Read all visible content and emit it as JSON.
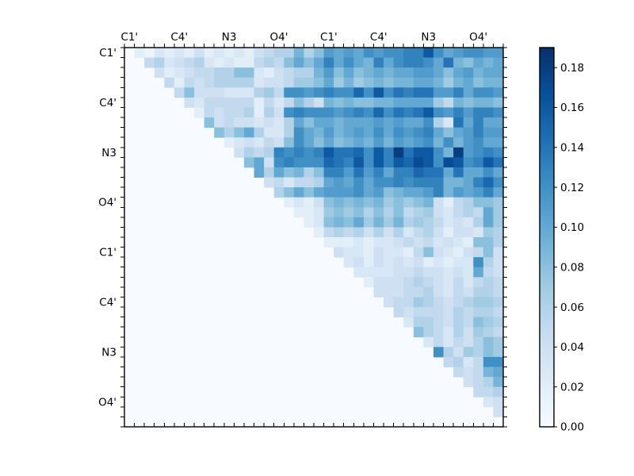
{
  "figure": {
    "background": "#ffffff"
  },
  "chart_data": {
    "type": "heatmap",
    "title": "",
    "xlabel": "",
    "ylabel": "",
    "n": 38,
    "triangle": "upper",
    "grid": false,
    "colormap": "Blues",
    "colormap_stops": [
      "#f7fbff",
      "#deebf7",
      "#c6dbef",
      "#9ecae1",
      "#6baed6",
      "#4292c6",
      "#2171b5",
      "#08519c",
      "#08306b"
    ],
    "vmin": 0.0,
    "vmax": 0.19,
    "x_tick_labels": [
      "C1'",
      "C4'",
      "N3",
      "O4'",
      "C1'",
      "C4'",
      "N3",
      "O4'"
    ],
    "y_tick_labels": [
      "C1'",
      "C4'",
      "N3",
      "O4'",
      "C1'",
      "C4'",
      "N3",
      "O4'"
    ],
    "label_positions": [
      0,
      5,
      10,
      15,
      20,
      25,
      30,
      35
    ],
    "colorbar": {
      "position": "right",
      "tick_labels": [
        "0.00",
        "0.02",
        "0.04",
        "0.06",
        "0.08",
        "0.10",
        "0.12",
        "0.14",
        "0.16",
        "0.18"
      ],
      "tick_values": [
        0.0,
        0.02,
        0.04,
        0.06,
        0.08,
        0.1,
        0.12,
        0.14,
        0.16,
        0.18
      ]
    },
    "matrix_format": "row r holds values for columns r+1..n-1; diagonal and lower triangle are 0",
    "matrix_upper": [
      [
        0.02,
        0.01,
        0.03,
        0.02,
        0.03,
        0.02,
        0.04,
        0.02,
        0.03,
        0.02,
        0.03,
        0.02,
        0.04,
        0.05,
        0.06,
        0.06,
        0.09,
        0.06,
        0.08,
        0.11,
        0.1,
        0.11,
        0.1,
        0.12,
        0.11,
        0.12,
        0.12,
        0.13,
        0.13,
        0.16,
        0.12,
        0.1,
        0.11,
        0.12,
        0.12,
        0.11,
        0.11
      ],
      [
        0.05,
        0.06,
        0.03,
        0.04,
        0.05,
        0.06,
        0.03,
        0.02,
        0.03,
        0.02,
        0.02,
        0.05,
        0.06,
        0.05,
        0.08,
        0.1,
        0.08,
        0.1,
        0.13,
        0.1,
        0.12,
        0.1,
        0.09,
        0.13,
        0.1,
        0.12,
        0.13,
        0.13,
        0.12,
        0.1,
        0.14,
        0.09,
        0.08,
        0.1,
        0.09,
        0.1
      ],
      [
        0.04,
        0.02,
        0.03,
        0.04,
        0.05,
        0.05,
        0.06,
        0.06,
        0.08,
        0.08,
        0.03,
        0.02,
        0.04,
        0.05,
        0.06,
        0.06,
        0.09,
        0.11,
        0.08,
        0.1,
        0.08,
        0.09,
        0.1,
        0.09,
        0.1,
        0.1,
        0.11,
        0.11,
        0.1,
        0.08,
        0.1,
        0.11,
        0.09,
        0.1,
        0.1
      ],
      [
        0.05,
        0.02,
        0.05,
        0.04,
        0.05,
        0.06,
        0.06,
        0.06,
        0.06,
        0.03,
        0.04,
        0.04,
        0.05,
        0.07,
        0.07,
        0.08,
        0.1,
        0.07,
        0.09,
        0.07,
        0.08,
        0.09,
        0.08,
        0.09,
        0.09,
        0.1,
        0.1,
        0.09,
        0.07,
        0.09,
        0.1,
        0.08,
        0.09,
        0.09
      ],
      [
        0.05,
        0.08,
        0.04,
        0.04,
        0.04,
        0.03,
        0.03,
        0.03,
        0.06,
        0.07,
        0.05,
        0.12,
        0.12,
        0.11,
        0.12,
        0.13,
        0.12,
        0.12,
        0.15,
        0.12,
        0.16,
        0.12,
        0.14,
        0.13,
        0.14,
        0.14,
        0.11,
        0.11,
        0.13,
        0.1,
        0.12,
        0.12,
        0.11
      ],
      [
        0.04,
        0.03,
        0.05,
        0.05,
        0.05,
        0.05,
        0.05,
        0.02,
        0.05,
        0.03,
        0.05,
        0.08,
        0.06,
        0.04,
        0.09,
        0.08,
        0.09,
        0.08,
        0.08,
        0.09,
        0.09,
        0.1,
        0.1,
        0.1,
        0.1,
        0.07,
        0.05,
        0.09,
        0.08,
        0.09,
        0.09,
        0.08
      ],
      [
        0.02,
        0.05,
        0.04,
        0.05,
        0.05,
        0.06,
        0.02,
        0.06,
        0.04,
        0.12,
        0.13,
        0.12,
        0.12,
        0.12,
        0.11,
        0.12,
        0.13,
        0.12,
        0.15,
        0.12,
        0.14,
        0.13,
        0.14,
        0.16,
        0.12,
        0.11,
        0.13,
        0.11,
        0.13,
        0.13,
        0.12
      ],
      [
        0.08,
        0.04,
        0.05,
        0.04,
        0.04,
        0.03,
        0.04,
        0.03,
        0.06,
        0.1,
        0.08,
        0.1,
        0.1,
        0.09,
        0.1,
        0.1,
        0.1,
        0.11,
        0.1,
        0.11,
        0.1,
        0.1,
        0.12,
        0.06,
        0.03,
        0.14,
        0.1,
        0.13,
        0.1,
        0.1
      ],
      [
        0.08,
        0.06,
        0.08,
        0.1,
        0.06,
        0.03,
        0.03,
        0.06,
        0.12,
        0.1,
        0.09,
        0.11,
        0.09,
        0.1,
        0.11,
        0.1,
        0.12,
        0.1,
        0.12,
        0.11,
        0.12,
        0.13,
        0.1,
        0.08,
        0.1,
        0.11,
        0.13,
        0.11,
        0.11
      ],
      [
        0.02,
        0.03,
        0.04,
        0.03,
        0.05,
        0.04,
        0.08,
        0.12,
        0.1,
        0.08,
        0.1,
        0.08,
        0.09,
        0.1,
        0.09,
        0.11,
        0.09,
        0.11,
        0.1,
        0.11,
        0.12,
        0.09,
        0.12,
        0.09,
        0.11,
        0.12,
        0.1,
        0.1
      ],
      [
        0.04,
        0.06,
        0.05,
        0.06,
        0.13,
        0.12,
        0.13,
        0.12,
        0.13,
        0.16,
        0.14,
        0.14,
        0.15,
        0.12,
        0.16,
        0.13,
        0.18,
        0.14,
        0.16,
        0.16,
        0.12,
        0.09,
        0.18,
        0.11,
        0.12,
        0.13,
        0.12
      ],
      [
        0.08,
        0.1,
        0.04,
        0.12,
        0.13,
        0.12,
        0.12,
        0.12,
        0.15,
        0.14,
        0.13,
        0.16,
        0.12,
        0.16,
        0.13,
        0.16,
        0.15,
        0.17,
        0.16,
        0.12,
        0.17,
        0.16,
        0.12,
        0.13,
        0.16,
        0.14
      ],
      [
        0.1,
        0.06,
        0.1,
        0.08,
        0.09,
        0.06,
        0.08,
        0.13,
        0.13,
        0.11,
        0.14,
        0.11,
        0.13,
        0.1,
        0.13,
        0.13,
        0.15,
        0.14,
        0.14,
        0.1,
        0.14,
        0.1,
        0.1,
        0.12,
        0.1
      ],
      [
        0.04,
        0.05,
        0.03,
        0.05,
        0.05,
        0.06,
        0.1,
        0.11,
        0.1,
        0.12,
        0.1,
        0.12,
        0.12,
        0.13,
        0.12,
        0.13,
        0.13,
        0.13,
        0.09,
        0.09,
        0.1,
        0.13,
        0.15,
        0.12
      ],
      [
        0.06,
        0.08,
        0.1,
        0.08,
        0.1,
        0.11,
        0.11,
        0.11,
        0.12,
        0.1,
        0.11,
        0.08,
        0.09,
        0.1,
        0.1,
        0.11,
        0.13,
        0.09,
        0.11,
        0.1,
        0.11,
        0.13,
        0.1
      ],
      [
        0.02,
        0.03,
        0.02,
        0.04,
        0.08,
        0.09,
        0.08,
        0.09,
        0.08,
        0.09,
        0.07,
        0.08,
        0.07,
        0.08,
        0.09,
        0.04,
        0.02,
        0.05,
        0.06,
        0.08,
        0.08,
        0.07
      ],
      [
        0.02,
        0.02,
        0.03,
        0.07,
        0.08,
        0.07,
        0.08,
        0.06,
        0.08,
        0.06,
        0.08,
        0.05,
        0.06,
        0.07,
        0.04,
        0.03,
        0.05,
        0.06,
        0.05,
        0.1,
        0.07
      ],
      [
        0.02,
        0.03,
        0.08,
        0.09,
        0.08,
        0.1,
        0.07,
        0.09,
        0.07,
        0.09,
        0.06,
        0.07,
        0.06,
        0.05,
        0.03,
        0.04,
        0.03,
        0.06,
        0.1,
        0.07
      ],
      [
        0.02,
        0.05,
        0.06,
        0.05,
        0.06,
        0.04,
        0.06,
        0.04,
        0.06,
        0.03,
        0.05,
        0.06,
        0.04,
        0.02,
        0.04,
        0.04,
        0.03,
        0.07,
        0.06
      ],
      [
        0.02,
        0.02,
        0.02,
        0.03,
        0.02,
        0.03,
        0.03,
        0.04,
        0.05,
        0.04,
        0.05,
        0.03,
        0.04,
        0.03,
        0.02,
        0.08,
        0.08,
        0.06
      ],
      [
        0.04,
        0.03,
        0.03,
        0.02,
        0.04,
        0.03,
        0.03,
        0.02,
        0.05,
        0.08,
        0.04,
        0.03,
        0.02,
        0.04,
        0.05,
        0.08,
        0.04
      ],
      [
        0.03,
        0.04,
        0.02,
        0.04,
        0.03,
        0.04,
        0.03,
        0.04,
        0.02,
        0.03,
        0.02,
        0.03,
        0.03,
        0.12,
        0.06,
        0.04
      ],
      [
        0.03,
        0.03,
        0.03,
        0.03,
        0.04,
        0.04,
        0.05,
        0.04,
        0.04,
        0.03,
        0.04,
        0.03,
        0.1,
        0.05,
        0.04
      ],
      [
        0.02,
        0.04,
        0.04,
        0.04,
        0.05,
        0.06,
        0.05,
        0.04,
        0.03,
        0.05,
        0.03,
        0.05,
        0.06,
        0.05
      ],
      [
        0.04,
        0.04,
        0.04,
        0.05,
        0.05,
        0.06,
        0.04,
        0.03,
        0.05,
        0.04,
        0.06,
        0.06,
        0.05
      ],
      [
        0.04,
        0.05,
        0.05,
        0.07,
        0.06,
        0.05,
        0.04,
        0.05,
        0.06,
        0.07,
        0.07,
        0.06
      ],
      [
        0.05,
        0.04,
        0.05,
        0.05,
        0.05,
        0.04,
        0.06,
        0.05,
        0.06,
        0.06,
        0.05
      ],
      [
        0.03,
        0.06,
        0.06,
        0.05,
        0.04,
        0.06,
        0.05,
        0.08,
        0.07,
        0.06
      ],
      [
        0.08,
        0.06,
        0.05,
        0.03,
        0.06,
        0.04,
        0.07,
        0.06,
        0.05
      ],
      [
        0.03,
        0.05,
        0.03,
        0.05,
        0.04,
        0.06,
        0.08,
        0.07
      ],
      [
        0.12,
        0.06,
        0.04,
        0.07,
        0.06,
        0.08,
        0.07
      ],
      [
        0.05,
        0.06,
        0.03,
        0.05,
        0.12,
        0.12
      ],
      [
        0.05,
        0.04,
        0.05,
        0.09,
        0.1
      ],
      [
        0.04,
        0.05,
        0.06,
        0.09
      ],
      [
        0.05,
        0.05,
        0.06
      ],
      [
        0.03,
        0.04
      ],
      [
        0.04
      ],
      []
    ]
  }
}
